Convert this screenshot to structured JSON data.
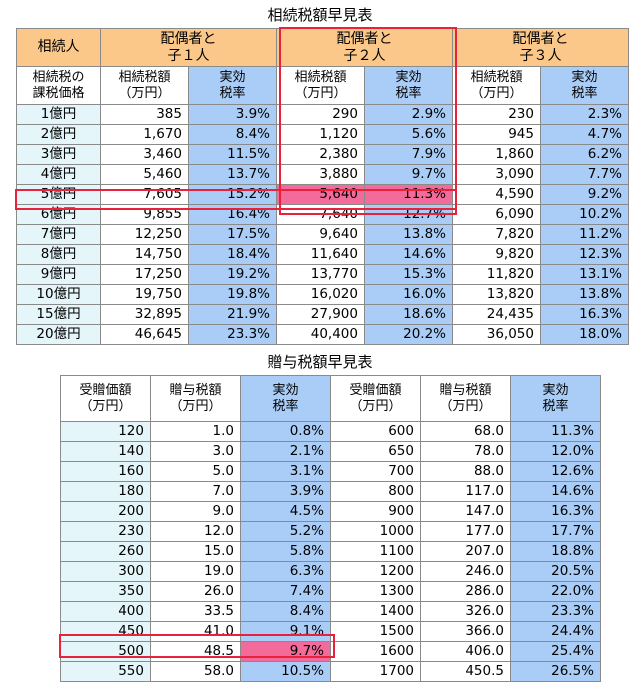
{
  "inheritance": {
    "title": "相続税額早見表",
    "corner": "相続人",
    "groups": [
      "配偶者と\n子１人",
      "配偶者と\n子２人",
      "配偶者と\n子３人"
    ],
    "sub_headers": {
      "label": "相続税の\n課税価格",
      "tax": "相続税額\n（万円）",
      "rate": "実効\n税率"
    },
    "rows": [
      {
        "label": "1億円",
        "c1": [
          "385",
          "3.9%"
        ],
        "c2": [
          "290",
          "2.9%"
        ],
        "c3": [
          "230",
          "2.3%"
        ]
      },
      {
        "label": "2億円",
        "c1": [
          "1,670",
          "8.4%"
        ],
        "c2": [
          "1,120",
          "5.6%"
        ],
        "c3": [
          "945",
          "4.7%"
        ]
      },
      {
        "label": "3億円",
        "c1": [
          "3,460",
          "11.5%"
        ],
        "c2": [
          "2,380",
          "7.9%"
        ],
        "c3": [
          "1,860",
          "6.2%"
        ]
      },
      {
        "label": "4億円",
        "c1": [
          "5,460",
          "13.7%"
        ],
        "c2": [
          "3,880",
          "9.7%"
        ],
        "c3": [
          "3,090",
          "7.7%"
        ]
      },
      {
        "label": "5億円",
        "c1": [
          "7,605",
          "15.2%"
        ],
        "c2": [
          "5,640",
          "11.3%"
        ],
        "c3": [
          "4,590",
          "9.2%"
        ]
      },
      {
        "label": "6億円",
        "c1": [
          "9,855",
          "16.4%"
        ],
        "c2": [
          "7,640",
          "12.7%"
        ],
        "c3": [
          "6,090",
          "10.2%"
        ]
      },
      {
        "label": "7億円",
        "c1": [
          "12,250",
          "17.5%"
        ],
        "c2": [
          "9,640",
          "13.8%"
        ],
        "c3": [
          "7,820",
          "11.2%"
        ]
      },
      {
        "label": "8億円",
        "c1": [
          "14,750",
          "18.4%"
        ],
        "c2": [
          "11,640",
          "14.6%"
        ],
        "c3": [
          "9,820",
          "12.3%"
        ]
      },
      {
        "label": "9億円",
        "c1": [
          "17,250",
          "19.2%"
        ],
        "c2": [
          "13,770",
          "15.3%"
        ],
        "c3": [
          "11,820",
          "13.1%"
        ]
      },
      {
        "label": "10億円",
        "c1": [
          "19,750",
          "19.8%"
        ],
        "c2": [
          "16,020",
          "16.0%"
        ],
        "c3": [
          "13,820",
          "13.8%"
        ]
      },
      {
        "label": "15億円",
        "c1": [
          "32,895",
          "21.9%"
        ],
        "c2": [
          "27,900",
          "18.6%"
        ],
        "c3": [
          "24,435",
          "16.3%"
        ]
      },
      {
        "label": "20億円",
        "c1": [
          "46,645",
          "23.3%"
        ],
        "c2": [
          "40,400",
          "20.2%"
        ],
        "c3": [
          "36,050",
          "18.0%"
        ]
      }
    ]
  },
  "gift": {
    "title": "贈与税額早見表",
    "headers": [
      "受贈価額\n（万円）",
      "贈与税額\n（万円）",
      "実効\n税率",
      "受贈価額\n（万円）",
      "贈与税額\n（万円）",
      "実効\n税率"
    ],
    "rows": [
      [
        "120",
        "1.0",
        "0.8%",
        "600",
        "68.0",
        "11.3%"
      ],
      [
        "140",
        "3.0",
        "2.1%",
        "650",
        "78.0",
        "12.0%"
      ],
      [
        "160",
        "5.0",
        "3.1%",
        "700",
        "88.0",
        "12.6%"
      ],
      [
        "180",
        "7.0",
        "3.9%",
        "800",
        "117.0",
        "14.6%"
      ],
      [
        "200",
        "9.0",
        "4.5%",
        "900",
        "147.0",
        "16.3%"
      ],
      [
        "230",
        "12.0",
        "5.2%",
        "1000",
        "177.0",
        "17.7%"
      ],
      [
        "260",
        "15.0",
        "5.8%",
        "1100",
        "207.0",
        "18.8%"
      ],
      [
        "300",
        "19.0",
        "6.3%",
        "1200",
        "246.0",
        "20.5%"
      ],
      [
        "350",
        "26.0",
        "7.4%",
        "1300",
        "286.0",
        "22.0%"
      ],
      [
        "400",
        "33.5",
        "8.4%",
        "1400",
        "326.0",
        "23.3%"
      ],
      [
        "450",
        "41.0",
        "9.1%",
        "1500",
        "366.0",
        "24.4%"
      ],
      [
        "500",
        "48.5",
        "9.7%",
        "1600",
        "406.0",
        "25.4%"
      ],
      [
        "550",
        "58.0",
        "10.5%",
        "1700",
        "450.5",
        "26.5%"
      ]
    ]
  },
  "colors": {
    "header_orange": "#fbc88a",
    "rate_blue": "#a9cdf7",
    "label_cyan": "#e4f6fa",
    "highlight_pink": "#f26b9b",
    "highlight_border": "#e8223a"
  }
}
